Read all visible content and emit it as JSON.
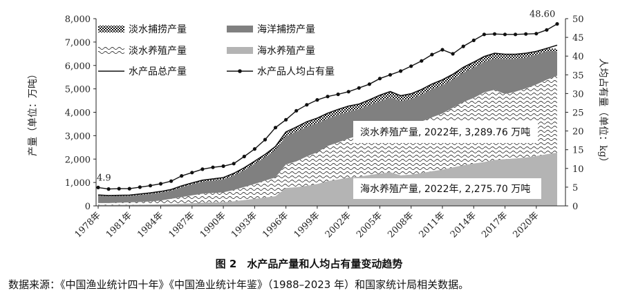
{
  "caption": "图 2　水产品产量和人均占有量变动趋势",
  "source": "数据来源：《中国渔业统计四十年》《中国渔业统计年鉴》（1988–2023 年）和国家统计局相关数据。",
  "chart_data": {
    "type": "area",
    "title": "水产品产量和人均占有量变动趋势",
    "ylabel": "产量（单位：万吨）",
    "y2label": "人均占有量（单位：kg）",
    "ylim": [
      0,
      8000
    ],
    "y2lim": [
      0,
      50
    ],
    "yticks": [
      "0",
      "1,000",
      "2,000",
      "3,000",
      "4,000",
      "5,000",
      "6,000",
      "7,000",
      "8,000"
    ],
    "y2ticks": [
      "0",
      "5",
      "10",
      "15",
      "20",
      "25",
      "30",
      "35",
      "40",
      "45",
      "50"
    ],
    "xtick_labels": [
      "1978年",
      "1981年",
      "1984年",
      "1987年",
      "1990年",
      "1993年",
      "1996年",
      "1999年",
      "2002年",
      "2005年",
      "2008年",
      "2011年",
      "2014年",
      "2017年",
      "2020年"
    ],
    "years": [
      1978,
      1979,
      1980,
      1981,
      1982,
      1983,
      1984,
      1985,
      1986,
      1987,
      1988,
      1989,
      1990,
      1991,
      1992,
      1993,
      1994,
      1995,
      1996,
      1997,
      1998,
      1999,
      2000,
      2001,
      2002,
      2003,
      2004,
      2005,
      2006,
      2007,
      2008,
      2009,
      2010,
      2011,
      2012,
      2013,
      2014,
      2015,
      2016,
      2017,
      2018,
      2019,
      2020,
      2021,
      2022
    ],
    "series": [
      {
        "name": "海水养殖产量",
        "values": [
          45,
          40,
          45,
          50,
          55,
          60,
          70,
          80,
          95,
          110,
          140,
          150,
          160,
          200,
          250,
          300,
          360,
          412,
          770,
          800,
          860,
          940,
          1060,
          1130,
          1212,
          1250,
          1320,
          1380,
          1445,
          1308,
          1340,
          1405,
          1482,
          1551,
          1643,
          1739,
          1813,
          1876,
          1963,
          2000,
          2030,
          2065,
          2135,
          2211,
          2276
        ]
      },
      {
        "name": "淡水养殖产量",
        "values": [
          76,
          80,
          90,
          100,
          110,
          130,
          160,
          220,
          280,
          340,
          380,
          400,
          420,
          480,
          560,
          640,
          720,
          800,
          1000,
          1100,
          1250,
          1350,
          1500,
          1580,
          1670,
          1750,
          1840,
          1950,
          2050,
          2040,
          2100,
          2200,
          2300,
          2400,
          2550,
          2700,
          2800,
          2975,
          2996,
          2780,
          2850,
          2950,
          3050,
          3180,
          3290
        ]
      },
      {
        "name": "海洋捕捞产量",
        "values": [
          314,
          285,
          281,
          270,
          300,
          320,
          340,
          350,
          425,
          470,
          510,
          530,
          550,
          620,
          720,
          860,
          1000,
          1180,
          1210,
          1270,
          1270,
          1240,
          1170,
          1180,
          1140,
          1130,
          1140,
          1140,
          1140,
          1130,
          1120,
          1150,
          1200,
          1210,
          1200,
          1250,
          1300,
          1300,
          1330,
          1500,
          1400,
          1320,
          1270,
          1210,
          1030
        ]
      },
      {
        "name": "淡水捕捞产量",
        "values": [
          30,
          35,
          37,
          40,
          42,
          45,
          48,
          50,
          55,
          60,
          68,
          75,
          80,
          90,
          100,
          110,
          120,
          146,
          180,
          200,
          215,
          220,
          230,
          230,
          243,
          220,
          230,
          260,
          250,
          230,
          230,
          220,
          225,
          227,
          230,
          230,
          230,
          230,
          231,
          200,
          197,
          185,
          147,
          130,
          120
        ]
      },
      {
        "name": "水产品总产量",
        "values": [
          465,
          440,
          453,
          460,
          507,
          555,
          618,
          700,
          855,
          980,
          1098,
          1155,
          1210,
          1390,
          1630,
          1910,
          2200,
          2538,
          3160,
          3370,
          3595,
          3750,
          3960,
          4120,
          4265,
          4350,
          4530,
          4730,
          4885,
          4708,
          4790,
          4975,
          5207,
          5388,
          5623,
          5919,
          6143,
          6381,
          6520,
          6480,
          6477,
          6520,
          6602,
          6731,
          6866
        ]
      },
      {
        "name": "水产品人均占有量",
        "values": [
          4.9,
          4.5,
          4.6,
          4.6,
          5.0,
          5.4,
          5.9,
          6.6,
          8.0,
          8.9,
          9.8,
          10.3,
          10.6,
          11.3,
          13.2,
          15.2,
          17.7,
          20.9,
          23.0,
          25.4,
          27.0,
          28.3,
          29.2,
          29.8,
          30.5,
          31.5,
          32.5,
          34.0,
          35.0,
          36.0,
          37.3,
          38.7,
          40.4,
          41.7,
          40.6,
          42.6,
          44.2,
          45.8,
          45.9,
          45.8,
          45.8,
          45.9,
          46.0,
          47.0,
          48.6
        ]
      }
    ],
    "legend": [
      "淡水捕捞产量",
      "海洋捕捞产量",
      "淡水养殖产量",
      "海水养殖产量",
      "水产品总产量",
      "水产品人均占有量"
    ],
    "legend_position": "top-left",
    "annotations": {
      "first_point": "4.9",
      "last_point": "48.60",
      "freshwater_aquaculture": "淡水养殖产量, 2022年, 3,289.76 万吨",
      "marine_aquaculture": "海水养殖产量, 2022年, 2,275.70 万吨"
    },
    "colors": {
      "marine_aquaculture": "#b4b4b4",
      "marine_capture": "#808080",
      "total_line": "#111111",
      "per_capita_line": "#111111"
    }
  }
}
